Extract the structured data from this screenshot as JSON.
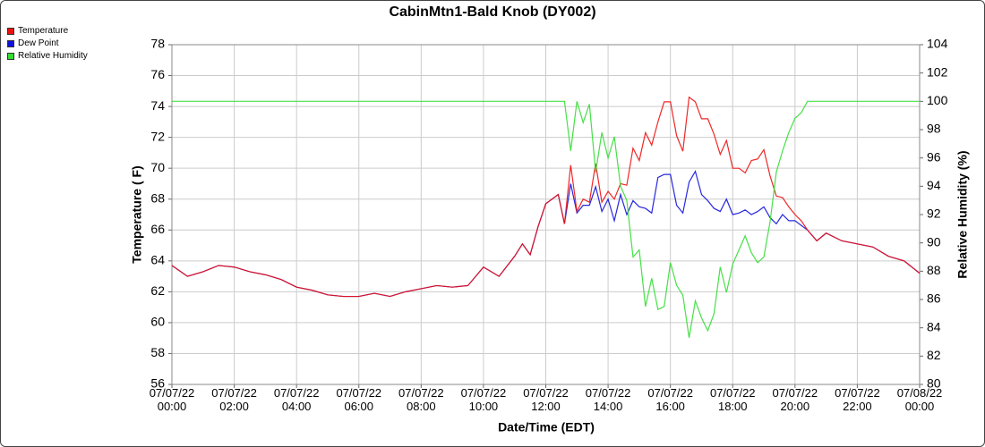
{
  "chart_data": {
    "type": "line",
    "title": "CabinMtn1-Bald Knob (DY002)",
    "xlabel": "Date/Time (EDT)",
    "ylabel": "Temperature ( F)",
    "y2label": "Relative Humidity (%)",
    "x": [
      0,
      0.5,
      1,
      1.5,
      2,
      2.5,
      3,
      3.5,
      4,
      4.5,
      5,
      5.5,
      6,
      6.5,
      7,
      7.5,
      8,
      8.5,
      9,
      9.5,
      10,
      10.5,
      11,
      11.25,
      11.5,
      11.75,
      12,
      12.2,
      12.4,
      12.6,
      12.8,
      13,
      13.2,
      13.4,
      13.6,
      13.8,
      14,
      14.2,
      14.4,
      14.6,
      14.8,
      15,
      15.2,
      15.4,
      15.6,
      15.8,
      16,
      16.2,
      16.4,
      16.6,
      16.8,
      17,
      17.2,
      17.4,
      17.6,
      17.8,
      18,
      18.2,
      18.4,
      18.6,
      18.8,
      19,
      19.2,
      19.4,
      19.6,
      19.8,
      20,
      20.2,
      20.4,
      20.7,
      21,
      21.5,
      22,
      22.5,
      23,
      23.5,
      24
    ],
    "series": [
      {
        "name": "Temperature",
        "color": "#ee1111",
        "axis": "y",
        "values": [
          63.7,
          63.0,
          63.3,
          63.7,
          63.6,
          63.3,
          63.1,
          62.8,
          62.3,
          62.1,
          61.8,
          61.7,
          61.7,
          61.9,
          61.7,
          62.0,
          62.2,
          62.4,
          62.3,
          62.4,
          63.6,
          63.0,
          64.3,
          65.1,
          64.4,
          66.2,
          67.7,
          68.0,
          68.3,
          66.4,
          70.2,
          67.2,
          68.0,
          67.8,
          70.3,
          67.8,
          68.5,
          68.0,
          69.0,
          68.9,
          71.3,
          70.5,
          72.3,
          71.5,
          73.0,
          74.3,
          74.3,
          72.1,
          71.1,
          74.6,
          74.3,
          73.2,
          73.2,
          72.2,
          70.9,
          71.8,
          70.0,
          70.0,
          69.7,
          70.5,
          70.6,
          71.2,
          69.5,
          68.2,
          68.1,
          67.5,
          67.0,
          66.6,
          66.0,
          65.3,
          65.8,
          65.3,
          65.1,
          64.9,
          64.3,
          64.0,
          63.2
        ]
      },
      {
        "name": "Dew Point",
        "color": "#1111dd",
        "axis": "y",
        "values": [
          63.7,
          63.0,
          63.3,
          63.7,
          63.6,
          63.3,
          63.1,
          62.8,
          62.3,
          62.1,
          61.8,
          61.7,
          61.7,
          61.9,
          61.7,
          62.0,
          62.2,
          62.4,
          62.3,
          62.4,
          63.6,
          63.0,
          64.3,
          65.1,
          64.4,
          66.2,
          67.7,
          68.0,
          68.3,
          66.4,
          69.0,
          67.1,
          67.6,
          67.6,
          68.8,
          67.2,
          68.0,
          66.6,
          68.3,
          67.0,
          67.9,
          67.5,
          67.4,
          67.1,
          69.4,
          69.6,
          69.6,
          67.6,
          67.1,
          69.1,
          69.8,
          68.3,
          67.9,
          67.4,
          67.2,
          68.0,
          67.0,
          67.1,
          67.3,
          67.0,
          67.2,
          67.5,
          66.8,
          66.4,
          67.0,
          66.6,
          66.6,
          66.3,
          66.0,
          65.3,
          65.8,
          65.3,
          65.1,
          64.9,
          64.3,
          64.0,
          63.2
        ]
      },
      {
        "name": "Relative Humidity",
        "color": "#33dd33",
        "axis": "y2",
        "values": [
          100,
          100,
          100,
          100,
          100,
          100,
          100,
          100,
          100,
          100,
          100,
          100,
          100,
          100,
          100,
          100,
          100,
          100,
          100,
          100,
          100,
          100,
          100,
          100,
          100,
          100,
          100,
          100,
          100,
          100,
          96.5,
          100,
          98.5,
          99.8,
          95,
          97.8,
          96,
          97.5,
          94,
          93,
          89,
          89.5,
          85.5,
          87.5,
          85.3,
          85.5,
          88.6,
          87.0,
          86.3,
          83.3,
          85.9,
          84.7,
          83.8,
          85,
          88.3,
          86.5,
          88.5,
          89.5,
          90.5,
          89.3,
          88.6,
          89,
          91.5,
          95.0,
          96.5,
          97.8,
          98.8,
          99.2,
          100,
          100,
          100,
          100,
          100,
          100,
          100,
          100,
          100
        ]
      }
    ],
    "xlim": [
      0,
      24
    ],
    "xticks": [
      {
        "value": 0,
        "label": "07/07/22\n00:00"
      },
      {
        "value": 2,
        "label": "07/07/22\n02:00"
      },
      {
        "value": 4,
        "label": "07/07/22\n04:00"
      },
      {
        "value": 6,
        "label": "07/07/22\n06:00"
      },
      {
        "value": 8,
        "label": "07/07/22\n08:00"
      },
      {
        "value": 10,
        "label": "07/07/22\n10:00"
      },
      {
        "value": 12,
        "label": "07/07/22\n12:00"
      },
      {
        "value": 14,
        "label": "07/07/22\n14:00"
      },
      {
        "value": 16,
        "label": "07/07/22\n16:00"
      },
      {
        "value": 18,
        "label": "07/07/22\n18:00"
      },
      {
        "value": 20,
        "label": "07/07/22\n20:00"
      },
      {
        "value": 22,
        "label": "07/07/22\n22:00"
      },
      {
        "value": 24,
        "label": "07/08/22\n00:00"
      }
    ],
    "ylim": [
      56,
      78
    ],
    "yticks": [
      56,
      58,
      60,
      62,
      64,
      66,
      68,
      70,
      72,
      74,
      76,
      78
    ],
    "y2lim": [
      80,
      104
    ],
    "y2ticks": [
      80,
      82,
      84,
      86,
      88,
      90,
      92,
      94,
      96,
      98,
      100,
      102,
      104
    ],
    "grid": true,
    "legend": "top-left"
  }
}
